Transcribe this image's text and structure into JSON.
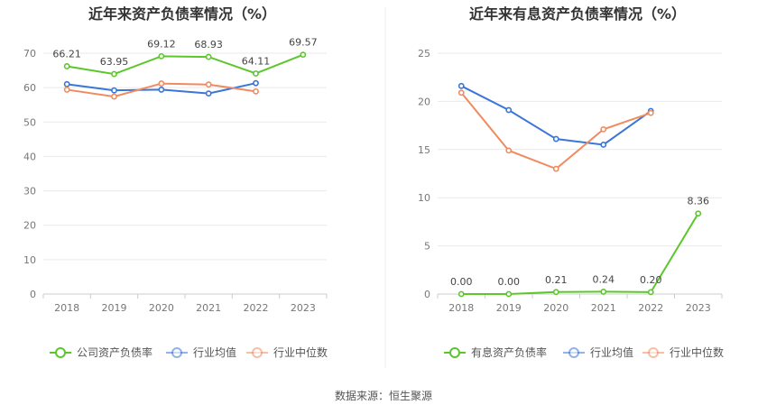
{
  "source": "数据来源：恒生聚源",
  "chart_data": [
    {
      "type": "line",
      "title": "近年来资产负债率情况（%）",
      "categories": [
        "2018",
        "2019",
        "2020",
        "2021",
        "2022",
        "2023"
      ],
      "ylim": [
        0,
        70
      ],
      "yticks": [
        0,
        10,
        20,
        30,
        40,
        50,
        60,
        70
      ],
      "grid": true,
      "legend_position": "bottom",
      "series": [
        {
          "name": "公司资产负债率",
          "color": "#5cc72c",
          "values": [
            66.21,
            63.95,
            69.12,
            68.93,
            64.11,
            69.57
          ],
          "labels": [
            "66.21",
            "63.95",
            "69.12",
            "68.93",
            "64.11",
            "69.57"
          ]
        },
        {
          "name": "行业均值",
          "color": "#3a75d8",
          "values": [
            61.0,
            59.2,
            59.4,
            58.3,
            61.3,
            null
          ]
        },
        {
          "name": "行业中位数",
          "color": "#f08b5f",
          "values": [
            59.4,
            57.4,
            61.2,
            60.9,
            58.9,
            null
          ]
        }
      ]
    },
    {
      "type": "line",
      "title": "近年来有息资产负债率情况（%）",
      "categories": [
        "2018",
        "2019",
        "2020",
        "2021",
        "2022",
        "2023"
      ],
      "ylim": [
        0,
        25
      ],
      "yticks": [
        0,
        5,
        10,
        15,
        20,
        25
      ],
      "grid": true,
      "legend_position": "bottom",
      "series": [
        {
          "name": "有息资产负债率",
          "color": "#5cc72c",
          "values": [
            0.0,
            0.0,
            0.21,
            0.24,
            0.2,
            8.36
          ],
          "labels": [
            "0.00",
            "0.00",
            "0.21",
            "0.24",
            "0.20",
            "8.36"
          ]
        },
        {
          "name": "行业均值",
          "color": "#3a75d8",
          "values": [
            21.6,
            19.1,
            16.1,
            15.5,
            19.0,
            null
          ]
        },
        {
          "name": "行业中位数",
          "color": "#f08b5f",
          "values": [
            20.9,
            14.9,
            13.0,
            17.1,
            18.8,
            null
          ]
        }
      ]
    }
  ]
}
